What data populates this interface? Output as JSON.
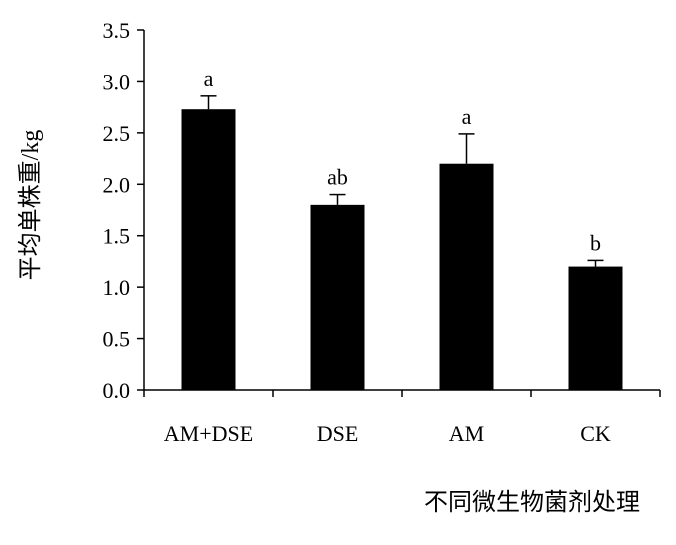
{
  "chart_data": {
    "type": "bar",
    "categories": [
      "AM+DSE",
      "DSE",
      "AM",
      "CK"
    ],
    "values": [
      2.73,
      1.8,
      2.2,
      1.2
    ],
    "error_upper": [
      2.86,
      1.9,
      2.49,
      1.26
    ],
    "significance_labels": [
      "a",
      "ab",
      "a",
      "b"
    ],
    "ylabel": "平均单株重/kg",
    "xlabel": "不同微生物菌剂处理",
    "ylim": [
      0,
      3.5
    ],
    "ytick_values": [
      0,
      0.5,
      1.0,
      1.5,
      2.0,
      2.5,
      3.0,
      3.5
    ],
    "ytick_labels": [
      "0.0",
      "0.5",
      "1.0",
      "1.5",
      "2.0",
      "2.5",
      "3.0",
      "3.5"
    ],
    "grid": false,
    "bar_color": "#000000"
  }
}
